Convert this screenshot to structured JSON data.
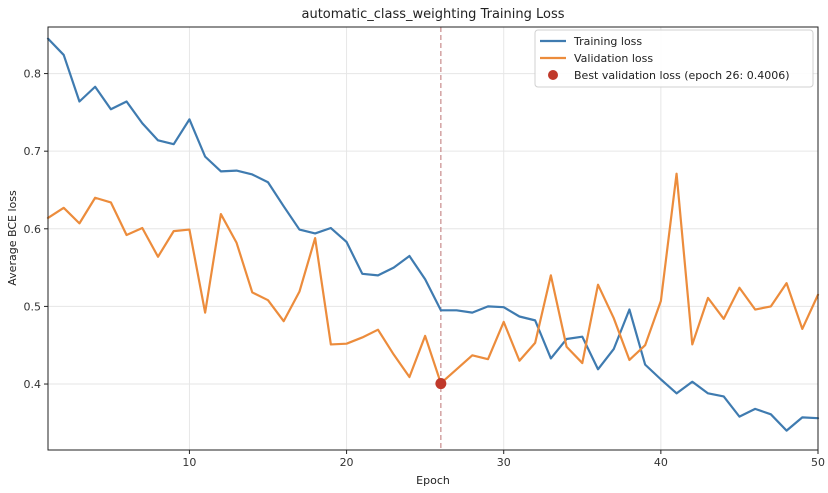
{
  "chart_data": {
    "type": "line",
    "title": "automatic_class_weighting Training Loss",
    "xlabel": "Epoch",
    "ylabel": "Average BCE loss",
    "xlim": [
      1,
      50
    ],
    "ylim": [
      0.315,
      0.86
    ],
    "xticks": [
      10,
      20,
      30,
      40,
      50
    ],
    "yticks": [
      0.4,
      0.5,
      0.6,
      0.7,
      0.8
    ],
    "grid": true,
    "legend_position": "top-right",
    "x": [
      1,
      2,
      3,
      4,
      5,
      6,
      7,
      8,
      9,
      10,
      11,
      12,
      13,
      14,
      15,
      16,
      17,
      18,
      19,
      20,
      21,
      22,
      23,
      24,
      25,
      26,
      27,
      28,
      29,
      30,
      31,
      32,
      33,
      34,
      35,
      36,
      37,
      38,
      39,
      40,
      41,
      42,
      43,
      44,
      45,
      46,
      47,
      48,
      49,
      50
    ],
    "series": [
      {
        "name": "Training loss",
        "color": "#3f7bb0",
        "values": [
          0.845,
          0.824,
          0.764,
          0.783,
          0.754,
          0.764,
          0.736,
          0.714,
          0.709,
          0.741,
          0.693,
          0.674,
          0.675,
          0.67,
          0.66,
          0.629,
          0.599,
          0.594,
          0.601,
          0.583,
          0.542,
          0.54,
          0.55,
          0.565,
          0.535,
          0.495,
          0.495,
          0.492,
          0.5,
          0.499,
          0.487,
          0.482,
          0.433,
          0.458,
          0.461,
          0.419,
          0.445,
          0.496,
          0.425,
          0.406,
          0.388,
          0.403,
          0.388,
          0.384,
          0.358,
          0.368,
          0.361,
          0.34,
          0.357,
          0.356
        ]
      },
      {
        "name": "Validation loss",
        "color": "#ec8c3c",
        "values": [
          0.614,
          0.627,
          0.607,
          0.64,
          0.634,
          0.592,
          0.601,
          0.564,
          0.597,
          0.599,
          0.492,
          0.619,
          0.582,
          0.518,
          0.508,
          0.481,
          0.519,
          0.588,
          0.451,
          0.452,
          0.46,
          0.47,
          0.438,
          0.409,
          0.462,
          0.401,
          0.419,
          0.437,
          0.432,
          0.48,
          0.43,
          0.453,
          0.54,
          0.448,
          0.427,
          0.528,
          0.485,
          0.431,
          0.45,
          0.507,
          0.671,
          0.451,
          0.511,
          0.484,
          0.524,
          0.496,
          0.5,
          0.53,
          0.471,
          0.515
        ]
      }
    ],
    "best": {
      "label": "Best validation loss (epoch 26: 0.4006)",
      "epoch": 26,
      "value": 0.4006,
      "color": "#c0392b"
    },
    "vline_color": "#c98b8b"
  }
}
